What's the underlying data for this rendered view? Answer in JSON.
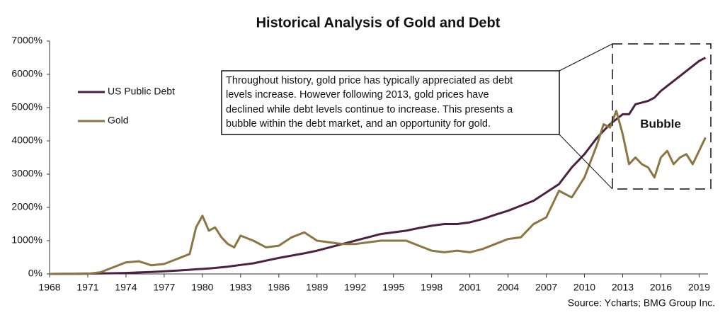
{
  "chart_data": {
    "type": "line",
    "title": "Historical Analysis of Gold and Debt",
    "source": "Source: Ycharts; BMG Group Inc.",
    "annotation": [
      "Throughout history, gold price has typically appreciated as debt",
      "levels increase. However following 2013, gold prices have",
      "declined while debt levels continue to increase. This presents a",
      "bubble within the debt market, and an opportunity for gold."
    ],
    "callout": "Bubble",
    "legend": "upper left",
    "xlim": [
      1968,
      2019.7
    ],
    "xticks": [
      1968,
      1971,
      1974,
      1977,
      1980,
      1983,
      1986,
      1989,
      1992,
      1995,
      1998,
      2001,
      2004,
      2007,
      2010,
      2013,
      2016,
      2019
    ],
    "ylim": [
      0,
      7000
    ],
    "yticks": [
      {
        "value": 0,
        "label": "0%"
      },
      {
        "value": 1000,
        "label": "1000%"
      },
      {
        "value": 2000,
        "label": "2000%"
      },
      {
        "value": 3000,
        "label": "3000%"
      },
      {
        "value": 4000,
        "label": "4000%"
      },
      {
        "value": 5000,
        "label": "5000%"
      },
      {
        "value": 6000,
        "label": "6000%"
      },
      {
        "value": 7000,
        "label": "7000%"
      }
    ],
    "x": [
      1968,
      1969,
      1970,
      1971,
      1972,
      1973,
      1974,
      1975,
      1976,
      1977,
      1978,
      1979,
      1979.5,
      1980,
      1980.5,
      1981,
      1981.5,
      1982,
      1982.5,
      1983,
      1984,
      1985,
      1986,
      1987,
      1988,
      1989,
      1990,
      1991,
      1992,
      1993,
      1994,
      1995,
      1996,
      1997,
      1998,
      1999,
      2000,
      2001,
      2002,
      2003,
      2004,
      2005,
      2006,
      2007,
      2008,
      2009,
      2010,
      2010.5,
      2011,
      2011.5,
      2012,
      2012.5,
      2013,
      2013.5,
      2014,
      2014.5,
      2015,
      2015.5,
      2016,
      2016.5,
      2017,
      2017.5,
      2018,
      2018.5,
      2019,
      2019.5
    ],
    "series": [
      {
        "name": "US Public Debt",
        "color": "#4b2142",
        "values": [
          0,
          2,
          5,
          10,
          15,
          22,
          30,
          45,
          60,
          80,
          100,
          125,
          140,
          150,
          165,
          180,
          200,
          220,
          245,
          270,
          320,
          400,
          480,
          550,
          620,
          700,
          800,
          900,
          1000,
          1100,
          1200,
          1250,
          1300,
          1380,
          1450,
          1500,
          1500,
          1550,
          1650,
          1780,
          1900,
          2050,
          2200,
          2450,
          2700,
          3200,
          3600,
          3850,
          4100,
          4300,
          4500,
          4650,
          4800,
          4800,
          5100,
          5150,
          5200,
          5300,
          5500,
          5650,
          5800,
          5950,
          6100,
          6250,
          6400,
          6500
        ]
      },
      {
        "name": "Gold",
        "color": "#8b7643",
        "values": [
          0,
          5,
          0,
          5,
          50,
          200,
          350,
          380,
          260,
          300,
          450,
          600,
          1400,
          1750,
          1300,
          1400,
          1100,
          900,
          800,
          1150,
          1000,
          800,
          850,
          1100,
          1250,
          1000,
          950,
          900,
          900,
          950,
          1000,
          1000,
          1000,
          850,
          700,
          650,
          700,
          650,
          750,
          900,
          1050,
          1100,
          1500,
          1700,
          2500,
          2300,
          2900,
          3400,
          3900,
          4500,
          4400,
          4900,
          4200,
          3300,
          3500,
          3300,
          3200,
          2900,
          3500,
          3700,
          3300,
          3500,
          3600,
          3300,
          3700,
          4100
        ]
      }
    ]
  }
}
